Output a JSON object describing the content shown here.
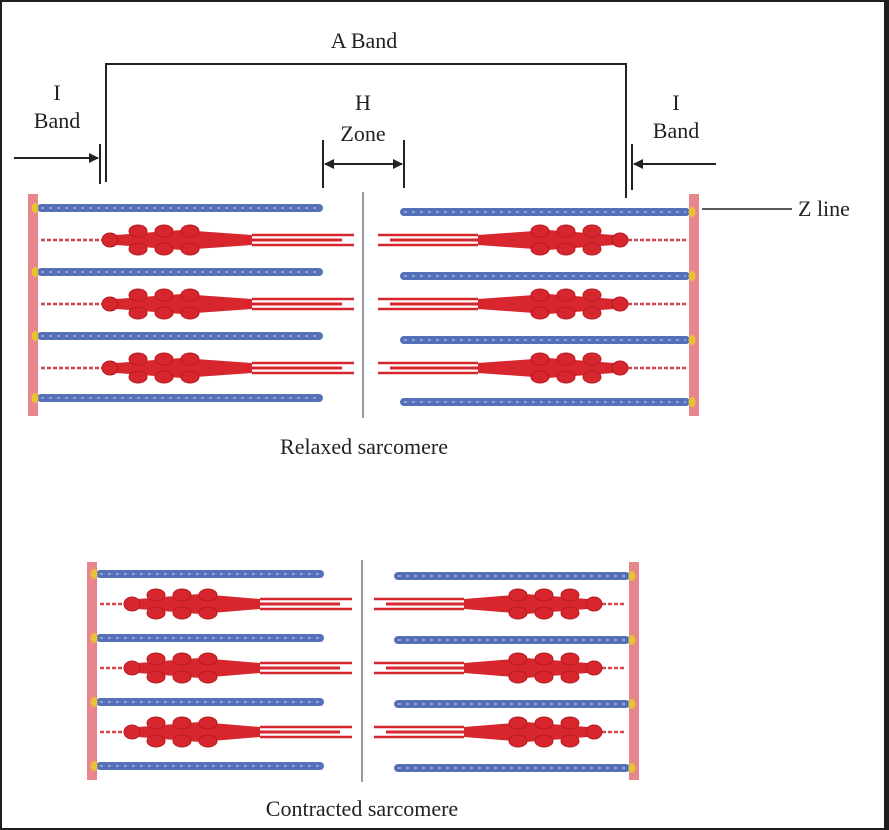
{
  "labels": {
    "a_band": "A Band",
    "i_band_line1": "I",
    "i_band_line2": "Band",
    "h_zone_line1": "H",
    "h_zone_line2": "Zone",
    "z_line": "Z line",
    "relaxed_caption": "Relaxed sarcomere",
    "contracted_caption": "Contracted sarcomere"
  },
  "colors": {
    "actin": "#5470b8",
    "myosin": "#d8262e",
    "myosin_dark": "#b51a22",
    "z_disc": "#e8868e",
    "z_disc_dot": "#e8c233",
    "titin": "#d6454c",
    "line": "#222222",
    "m_line": "#9a9a9a"
  }
}
